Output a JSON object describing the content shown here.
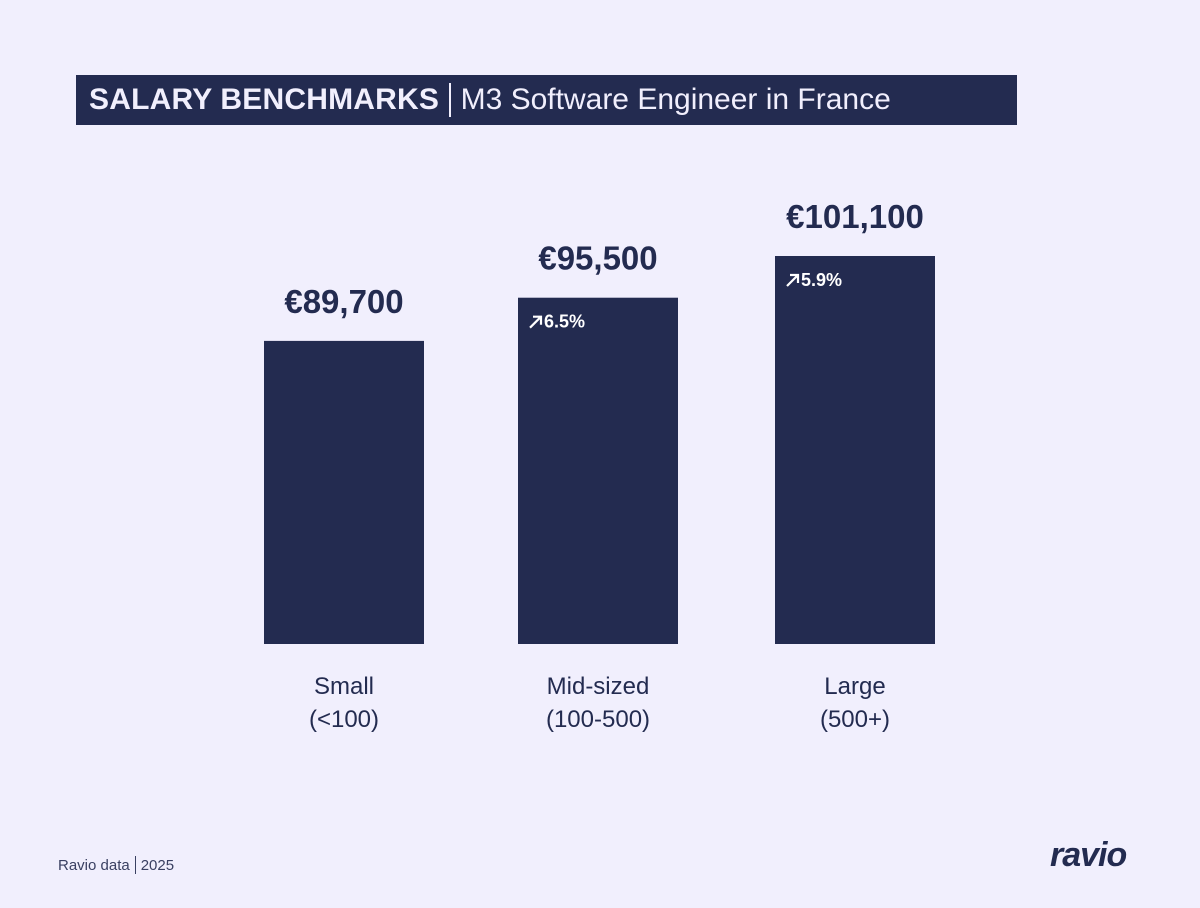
{
  "title": {
    "main": "SALARY BENCHMARKS",
    "subtitle": "M3 Software Engineer in France"
  },
  "footer": {
    "source": "Ravio data",
    "year": "2025",
    "logo": "ravio"
  },
  "colors": {
    "background": "#f1effd",
    "bar": "#232b50",
    "text": "#232b50"
  },
  "chart_data": {
    "type": "bar",
    "title": "SALARY BENCHMARKS | M3 Software Engineer in France",
    "categories": [
      [
        "Small",
        "(<100)"
      ],
      [
        "Mid-sized",
        "(100-500)"
      ],
      [
        "Large",
        "(500+)"
      ]
    ],
    "values": [
      89700,
      95500,
      101100
    ],
    "value_labels": [
      "€89,700",
      "€95,500",
      "€101,100"
    ],
    "change_labels": [
      "",
      "6.5%",
      "5.9%"
    ],
    "change_icon": "arrow-up-right-icon",
    "ylim": [
      49000,
      101100
    ],
    "grid": false,
    "axes_visible": false
  }
}
